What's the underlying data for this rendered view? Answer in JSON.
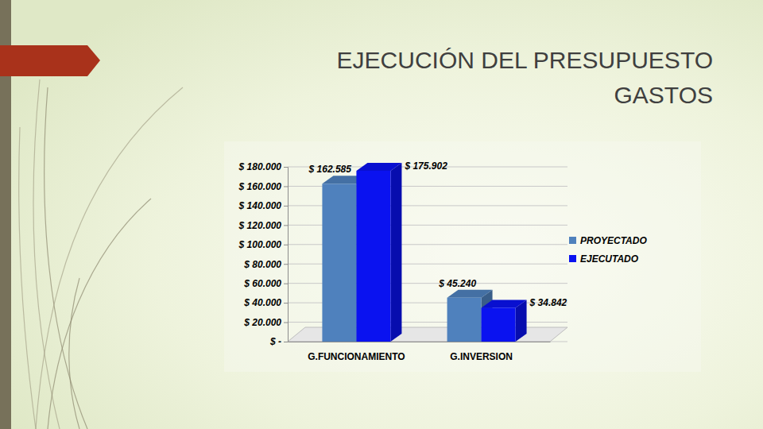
{
  "chart_data": {
    "type": "bar",
    "title": "EJECUCIÓN DEL PRESUPUESTO GASTOS",
    "categories": [
      "G.FUNCIONAMIENTO",
      "G.INVERSION"
    ],
    "series": [
      {
        "name": "PROYECTADO",
        "color": "#4f81bd",
        "values": [
          162585,
          45240
        ],
        "value_labels": [
          "$ 162.585",
          "$ 45.240"
        ]
      },
      {
        "name": "EJECUTADO",
        "color": "#0a12f0",
        "values": [
          175902,
          34842
        ],
        "value_labels": [
          "$ 175.902",
          "$ 34.842"
        ]
      }
    ],
    "ylim": [
      0,
      180000
    ],
    "yticks": [
      {
        "value": 0,
        "label": "$ -"
      },
      {
        "value": 20000,
        "label": "$ 20.000"
      },
      {
        "value": 40000,
        "label": "$ 40.000"
      },
      {
        "value": 60000,
        "label": "$ 60.000"
      },
      {
        "value": 80000,
        "label": "$ 80.000"
      },
      {
        "value": 100000,
        "label": "$ 100.000"
      },
      {
        "value": 120000,
        "label": "$ 120.000"
      },
      {
        "value": 140000,
        "label": "$ 140.000"
      },
      {
        "value": 160000,
        "label": "$ 160.000"
      },
      {
        "value": 180000,
        "label": "$ 180.000"
      }
    ],
    "grid": true,
    "legend": "right",
    "data_labels": true
  }
}
